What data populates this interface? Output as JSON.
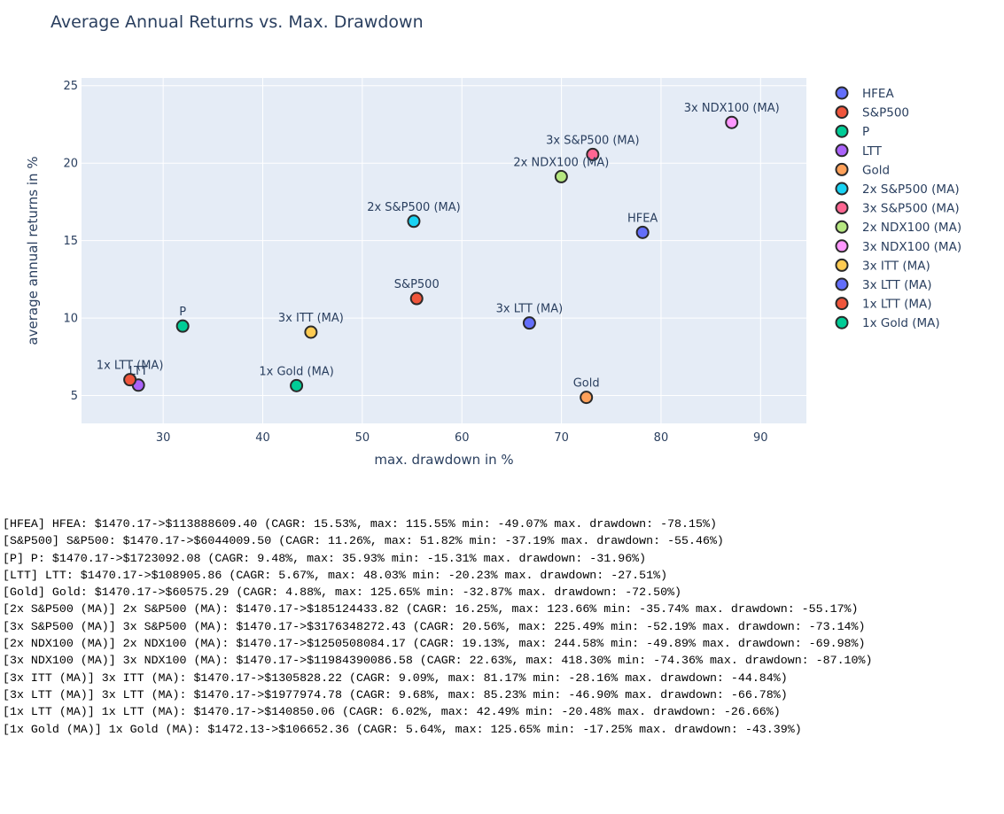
{
  "chart_data": {
    "type": "scatter",
    "title": "Average Annual Returns vs. Max. Drawdown",
    "xlabel": "max. drawdown in %",
    "ylabel": "average annual returns in %",
    "xlim": [
      21.8,
      94.6
    ],
    "ylim": [
      3.2,
      25.5
    ],
    "xticks": [
      30,
      40,
      50,
      60,
      70,
      80,
      90
    ],
    "yticks": [
      5,
      10,
      15,
      20,
      25
    ],
    "grid": true,
    "legend_position": "right",
    "series": [
      {
        "name": "HFEA",
        "x": 78.15,
        "y": 15.53,
        "label": "HFEA",
        "color": "#636efa",
        "label_side": "top"
      },
      {
        "name": "S&P500",
        "x": 55.46,
        "y": 11.26,
        "label": "S&P500",
        "color": "#ef553b",
        "label_side": "top"
      },
      {
        "name": "P",
        "x": 31.96,
        "y": 9.48,
        "label": "P",
        "color": "#00cc96",
        "label_side": "top"
      },
      {
        "name": "LTT",
        "x": 27.51,
        "y": 5.67,
        "label": "LTT",
        "color": "#ab63fa",
        "label_side": "top"
      },
      {
        "name": "Gold",
        "x": 72.5,
        "y": 4.88,
        "label": "Gold",
        "color": "#ffa15a",
        "label_side": "top"
      },
      {
        "name": "2x S&P500 (MA)",
        "x": 55.17,
        "y": 16.25,
        "label": "2x S&P500 (MA)",
        "color": "#19d3f3",
        "label_side": "top"
      },
      {
        "name": "3x S&P500 (MA)",
        "x": 73.14,
        "y": 20.56,
        "label": "3x S&P500 (MA)",
        "color": "#ff6692",
        "label_side": "top"
      },
      {
        "name": "2x NDX100 (MA)",
        "x": 69.98,
        "y": 19.13,
        "label": "2x NDX100 (MA)",
        "color": "#b6e880",
        "label_side": "top"
      },
      {
        "name": "3x NDX100 (MA)",
        "x": 87.1,
        "y": 22.63,
        "label": "3x NDX100 (MA)",
        "color": "#ff97ff",
        "label_side": "top"
      },
      {
        "name": "3x ITT (MA)",
        "x": 44.84,
        "y": 9.09,
        "label": "3x ITT (MA)",
        "color": "#fecb52",
        "label_side": "top"
      },
      {
        "name": "3x LTT (MA)",
        "x": 66.78,
        "y": 9.68,
        "label": "3x LTT (MA)",
        "color": "#636efa",
        "label_side": "top"
      },
      {
        "name": "1x LTT (MA)",
        "x": 26.66,
        "y": 6.02,
        "label": "1x LTT (MA)",
        "color": "#ef553b",
        "label_side": "top"
      },
      {
        "name": "1x Gold (MA)",
        "x": 43.39,
        "y": 5.64,
        "label": "1x Gold (MA)",
        "color": "#00cc96",
        "label_side": "top"
      }
    ]
  },
  "log_lines": [
    "[HFEA] HFEA: $1470.17->$113888609.40 (CAGR: 15.53%, max: 115.55% min: -49.07% max. drawdown: -78.15%)",
    "[S&P500] S&P500: $1470.17->$6044009.50 (CAGR: 11.26%, max: 51.82% min: -37.19% max. drawdown: -55.46%)",
    "[P] P: $1470.17->$1723092.08 (CAGR: 9.48%, max: 35.93% min: -15.31% max. drawdown: -31.96%)",
    "[LTT] LTT: $1470.17->$108905.86 (CAGR: 5.67%, max: 48.03% min: -20.23% max. drawdown: -27.51%)",
    "[Gold] Gold: $1470.17->$60575.29 (CAGR: 4.88%, max: 125.65% min: -32.87% max. drawdown: -72.50%)",
    "[2x S&P500 (MA)] 2x S&P500 (MA): $1470.17->$185124433.82 (CAGR: 16.25%, max: 123.66% min: -35.74% max. drawdown: -55.17%)",
    "[3x S&P500 (MA)] 3x S&P500 (MA): $1470.17->$3176348272.43 (CAGR: 20.56%, max: 225.49% min: -52.19% max. drawdown: -73.14%)",
    "[2x NDX100 (MA)] 2x NDX100 (MA): $1470.17->$1250508084.17 (CAGR: 19.13%, max: 244.58% min: -49.89% max. drawdown: -69.98%)",
    "[3x NDX100 (MA)] 3x NDX100 (MA): $1470.17->$11984390086.58 (CAGR: 22.63%, max: 418.30% min: -74.36% max. drawdown: -87.10%)",
    "[3x ITT (MA)] 3x ITT (MA): $1470.17->$1305828.22 (CAGR: 9.09%, max: 81.17% min: -28.16% max. drawdown: -44.84%)",
    "[3x LTT (MA)] 3x LTT (MA): $1470.17->$1977974.78 (CAGR: 9.68%, max: 85.23% min: -46.90% max. drawdown: -66.78%)",
    "[1x LTT (MA)] 1x LTT (MA): $1470.17->$140850.06 (CAGR: 6.02%, max: 42.49% min: -20.48% max. drawdown: -26.66%)",
    "[1x Gold (MA)] 1x Gold (MA): $1472.13->$106652.36 (CAGR: 5.64%, max: 125.65% min: -17.25% max. drawdown: -43.39%)"
  ]
}
